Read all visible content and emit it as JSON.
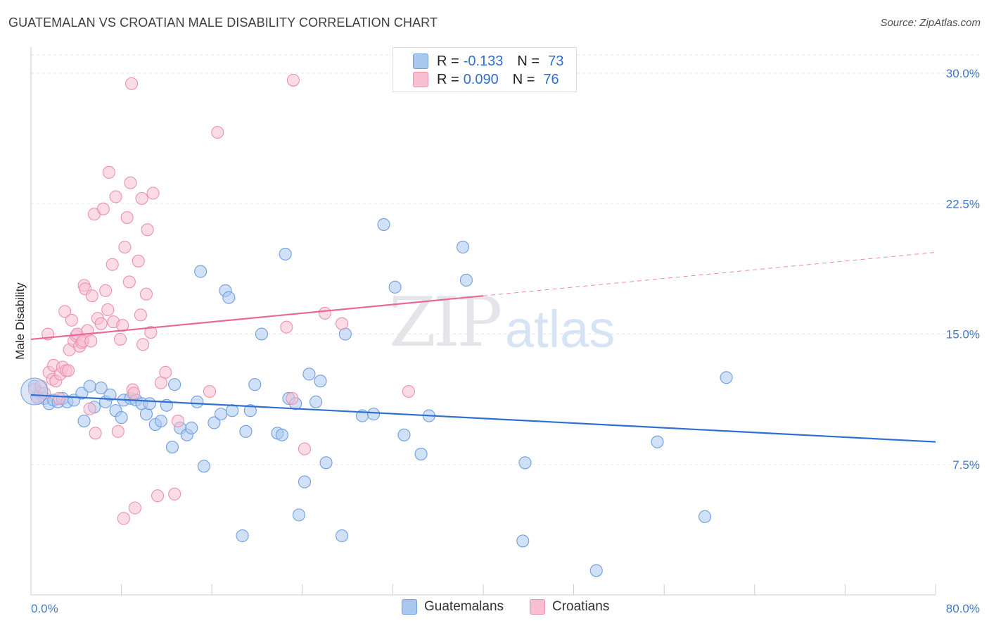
{
  "header": {
    "title": "GUATEMALAN VS CROATIAN MALE DISABILITY CORRELATION CHART",
    "source": "Source: ZipAtlas.com"
  },
  "watermark": {
    "zip": "ZIP",
    "atlas": "atlas"
  },
  "legend": {
    "rows": [
      {
        "r_label": "R =",
        "r_value": "-0.133",
        "n_label": "N =",
        "n_value": "73",
        "color": "#a9c8f0",
        "border": "#6f9ee0"
      },
      {
        "r_label": "R =",
        "r_value": "0.090",
        "n_label": "N =",
        "n_value": "76",
        "color": "#f8bfd1",
        "border": "#ee8fb0"
      }
    ]
  },
  "bottom_legend": {
    "guatemalans": "Guatemalans",
    "croatians": "Croatians"
  },
  "chart_data": {
    "type": "scatter",
    "title": "GUATEMALAN VS CROATIAN MALE DISABILITY CORRELATION CHART",
    "xlabel": "",
    "ylabel": "Male Disability",
    "xlim": [
      0,
      80
    ],
    "ylim": [
      0,
      31.5
    ],
    "x_tick_labels": [
      "0.0%",
      "80.0%"
    ],
    "y_ticks": [
      7.5,
      15.0,
      22.5,
      30.0
    ],
    "y_tick_labels": [
      "7.5%",
      "15.0%",
      "22.5%",
      "30.0%"
    ],
    "grid": "horizontal dashed",
    "legend_position": "top-center",
    "series": [
      {
        "name": "Guatemalans",
        "color": "#6f9ee0",
        "fill": "#a9c8f0",
        "trend": {
          "x0": 0,
          "y0": 11.5,
          "x1": 80,
          "y1": 8.8,
          "color": "#2f6fd1"
        },
        "points": [
          [
            0.3,
            12.0
          ],
          [
            0.5,
            11.4
          ],
          [
            0.8,
            11.6
          ],
          [
            1.2,
            11.3
          ],
          [
            1.6,
            11.0
          ],
          [
            2.0,
            11.2
          ],
          [
            2.4,
            11.1
          ],
          [
            2.8,
            11.3
          ],
          [
            3.2,
            11.1
          ],
          [
            3.8,
            11.2
          ],
          [
            4.5,
            11.6
          ],
          [
            4.7,
            10.0
          ],
          [
            5.2,
            12.0
          ],
          [
            5.6,
            10.8
          ],
          [
            6.2,
            11.9
          ],
          [
            6.6,
            11.1
          ],
          [
            7.0,
            11.5
          ],
          [
            7.5,
            10.6
          ],
          [
            8.0,
            10.2
          ],
          [
            8.2,
            11.2
          ],
          [
            8.8,
            11.3
          ],
          [
            9.3,
            11.2
          ],
          [
            9.8,
            11.0
          ],
          [
            10.2,
            10.4
          ],
          [
            10.5,
            11.0
          ],
          [
            11.0,
            9.8
          ],
          [
            11.5,
            10.0
          ],
          [
            12.0,
            10.9
          ],
          [
            12.5,
            8.5
          ],
          [
            12.7,
            12.1
          ],
          [
            13.2,
            9.6
          ],
          [
            13.8,
            9.2
          ],
          [
            14.2,
            9.6
          ],
          [
            14.7,
            11.1
          ],
          [
            15.3,
            7.4
          ],
          [
            15.0,
            18.6
          ],
          [
            16.2,
            9.9
          ],
          [
            16.8,
            10.4
          ],
          [
            17.2,
            17.5
          ],
          [
            17.5,
            17.1
          ],
          [
            17.8,
            10.6
          ],
          [
            18.7,
            3.4
          ],
          [
            19.0,
            9.4
          ],
          [
            19.4,
            10.6
          ],
          [
            19.8,
            12.1
          ],
          [
            20.4,
            15.0
          ],
          [
            21.8,
            9.3
          ],
          [
            22.2,
            9.2
          ],
          [
            22.5,
            19.6
          ],
          [
            22.8,
            11.3
          ],
          [
            23.4,
            11.0
          ],
          [
            23.7,
            4.6
          ],
          [
            24.2,
            6.5
          ],
          [
            24.6,
            12.7
          ],
          [
            25.2,
            11.1
          ],
          [
            25.6,
            12.3
          ],
          [
            26.1,
            7.6
          ],
          [
            27.5,
            3.4
          ],
          [
            27.8,
            15.0
          ],
          [
            29.3,
            10.3
          ],
          [
            30.3,
            10.4
          ],
          [
            31.2,
            21.3
          ],
          [
            32.2,
            17.7
          ],
          [
            33.0,
            9.2
          ],
          [
            34.5,
            8.1
          ],
          [
            35.2,
            10.3
          ],
          [
            38.2,
            20.0
          ],
          [
            38.5,
            18.1
          ],
          [
            43.5,
            3.1
          ],
          [
            43.7,
            7.6
          ],
          [
            50.0,
            1.4
          ],
          [
            55.4,
            8.8
          ],
          [
            59.6,
            4.5
          ],
          [
            61.5,
            12.5
          ]
        ]
      },
      {
        "name": "Croatians",
        "color": "#ee8fb0",
        "fill": "#f8bfd1",
        "trend": {
          "x0": 0,
          "y0": 14.7,
          "x1": 40,
          "y1": 17.2,
          "x2": 80,
          "y2": 19.7,
          "color": "#e8689a"
        },
        "points": [
          [
            0.3,
            11.8
          ],
          [
            0.6,
            11.3
          ],
          [
            0.9,
            12.0
          ],
          [
            1.2,
            11.6
          ],
          [
            1.5,
            15.0
          ],
          [
            1.6,
            12.8
          ],
          [
            1.9,
            12.4
          ],
          [
            2.0,
            13.2
          ],
          [
            2.2,
            12.3
          ],
          [
            2.5,
            11.3
          ],
          [
            2.6,
            12.7
          ],
          [
            2.8,
            13.1
          ],
          [
            3.0,
            16.3
          ],
          [
            3.1,
            12.9
          ],
          [
            3.3,
            12.9
          ],
          [
            3.4,
            14.1
          ],
          [
            3.6,
            15.8
          ],
          [
            3.8,
            14.6
          ],
          [
            4.0,
            14.9
          ],
          [
            4.1,
            15.0
          ],
          [
            4.3,
            14.3
          ],
          [
            4.5,
            14.5
          ],
          [
            4.6,
            14.6
          ],
          [
            4.7,
            17.8
          ],
          [
            4.8,
            17.6
          ],
          [
            5.0,
            15.2
          ],
          [
            5.2,
            10.7
          ],
          [
            5.3,
            14.6
          ],
          [
            5.4,
            17.2
          ],
          [
            5.6,
            21.9
          ],
          [
            5.7,
            9.3
          ],
          [
            5.9,
            15.9
          ],
          [
            6.2,
            15.6
          ],
          [
            6.4,
            22.2
          ],
          [
            6.6,
            17.5
          ],
          [
            6.8,
            16.4
          ],
          [
            6.9,
            24.3
          ],
          [
            7.2,
            19.0
          ],
          [
            7.3,
            15.7
          ],
          [
            7.5,
            22.9
          ],
          [
            7.7,
            9.4
          ],
          [
            7.9,
            14.7
          ],
          [
            8.1,
            15.5
          ],
          [
            8.2,
            4.4
          ],
          [
            8.3,
            20.0
          ],
          [
            8.5,
            21.7
          ],
          [
            8.7,
            18.0
          ],
          [
            8.8,
            23.7
          ],
          [
            8.9,
            29.4
          ],
          [
            9.0,
            11.8
          ],
          [
            9.1,
            11.6
          ],
          [
            9.2,
            5.0
          ],
          [
            9.5,
            19.2
          ],
          [
            9.7,
            16.1
          ],
          [
            9.8,
            22.8
          ],
          [
            9.9,
            14.4
          ],
          [
            10.2,
            17.3
          ],
          [
            10.3,
            21.0
          ],
          [
            10.6,
            15.1
          ],
          [
            10.8,
            23.1
          ],
          [
            11.2,
            5.7
          ],
          [
            11.5,
            12.2
          ],
          [
            11.9,
            12.8
          ],
          [
            12.7,
            5.8
          ],
          [
            13.0,
            10.0
          ],
          [
            15.8,
            11.7
          ],
          [
            16.5,
            26.6
          ],
          [
            22.6,
            15.4
          ],
          [
            23.1,
            11.3
          ],
          [
            23.2,
            29.6
          ],
          [
            24.2,
            8.4
          ],
          [
            26.0,
            16.2
          ],
          [
            27.5,
            15.6
          ],
          [
            33.4,
            11.7
          ]
        ]
      }
    ]
  }
}
